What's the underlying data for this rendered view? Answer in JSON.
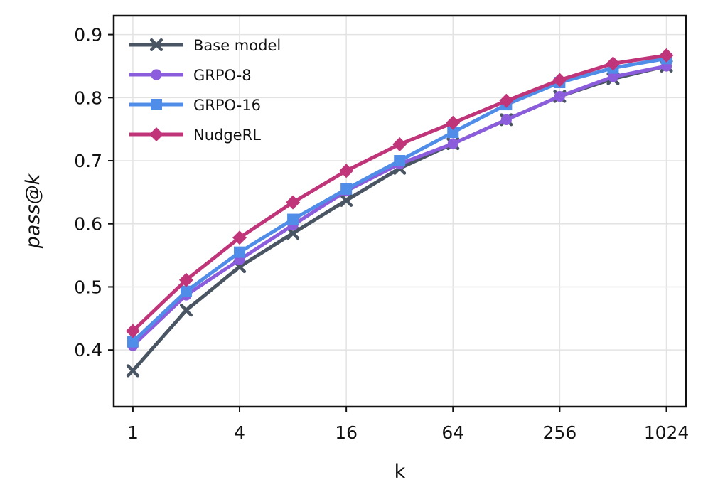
{
  "chart_data": {
    "type": "line",
    "title": "",
    "xlabel": "k",
    "ylabel": "pass@k",
    "x_scale": "log2",
    "x": [
      1,
      2,
      4,
      8,
      16,
      32,
      64,
      128,
      256,
      512,
      1024
    ],
    "xticks": [
      "1",
      "4",
      "16",
      "64",
      "256",
      "1024"
    ],
    "xlim": [
      0.78,
      1320
    ],
    "yticks": [
      "0.4",
      "0.5",
      "0.6",
      "0.7",
      "0.8",
      "0.9"
    ],
    "ylim": [
      0.31,
      0.93
    ],
    "grid": true,
    "legend_position": "top-left",
    "series": [
      {
        "name": "Base model",
        "color": "#4a5563",
        "marker": "x",
        "values": [
          0.367,
          0.463,
          0.532,
          0.585,
          0.637,
          0.688,
          0.727,
          0.765,
          0.802,
          0.83,
          0.85
        ]
      },
      {
        "name": "GRPO-8",
        "color": "#8b5cdb",
        "marker": "circle",
        "values": [
          0.407,
          0.487,
          0.543,
          0.598,
          0.652,
          0.695,
          0.727,
          0.765,
          0.802,
          0.833,
          0.85
        ]
      },
      {
        "name": "GRPO-16",
        "color": "#4f8de8",
        "marker": "square",
        "values": [
          0.413,
          0.493,
          0.555,
          0.607,
          0.655,
          0.7,
          0.745,
          0.789,
          0.824,
          0.847,
          0.862
        ]
      },
      {
        "name": "NudgeRL",
        "color": "#c0357a",
        "marker": "diamond",
        "values": [
          0.43,
          0.511,
          0.578,
          0.634,
          0.684,
          0.726,
          0.76,
          0.795,
          0.828,
          0.854,
          0.867
        ]
      }
    ]
  }
}
